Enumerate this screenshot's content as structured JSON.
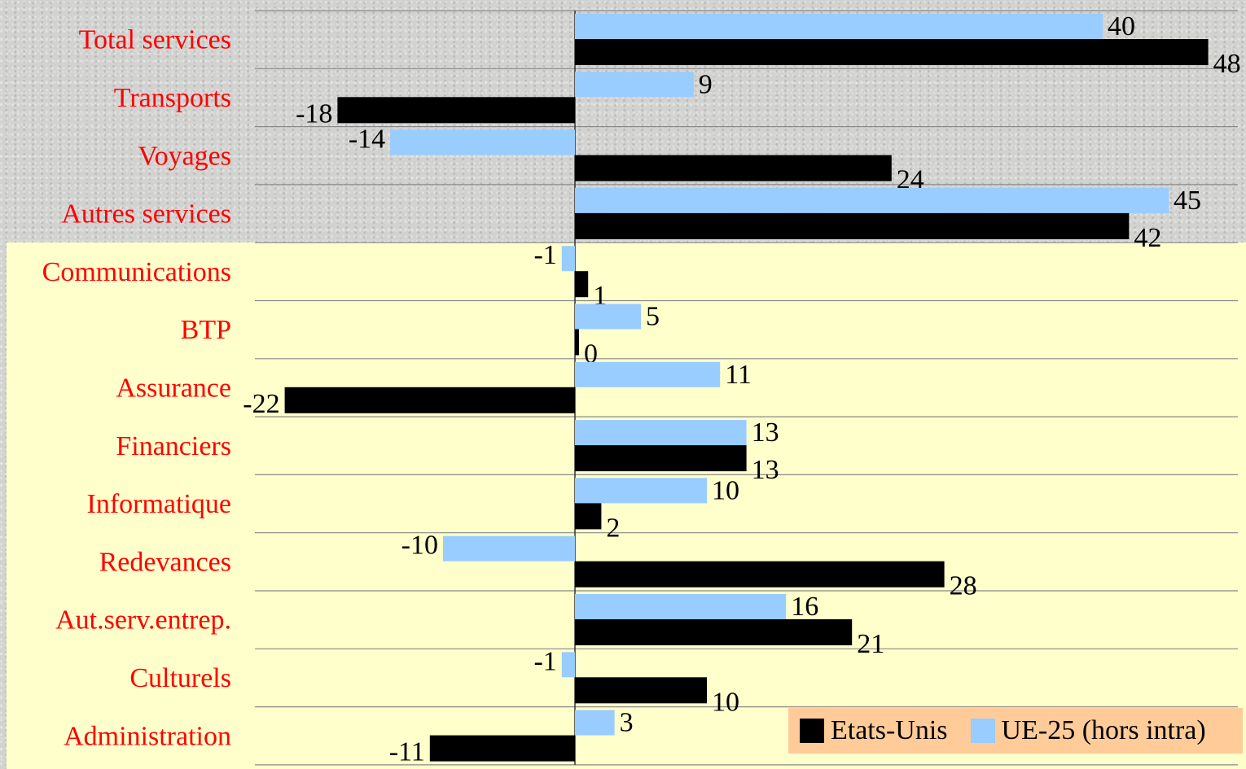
{
  "chart_data": {
    "type": "bar",
    "orientation": "horizontal",
    "categories": [
      "Total services",
      "Transports",
      "Voyages",
      "Autres services",
      "Communications",
      "BTP",
      "Assurance",
      "Financiers",
      "Informatique",
      "Redevances",
      "Aut.serv.entrep.",
      "Culturels",
      "Administration"
    ],
    "series": [
      {
        "name": "UE-25 (hors intra)",
        "color": "#99ccff",
        "values": [
          40,
          9,
          -14,
          45,
          -1,
          5,
          11,
          13,
          10,
          -10,
          16,
          -1,
          3
        ]
      },
      {
        "name": "Etats-Unis",
        "color": "#000000",
        "values": [
          48,
          -18,
          24,
          42,
          1,
          0,
          -22,
          13,
          2,
          28,
          21,
          10,
          -11
        ]
      }
    ],
    "xlim": [
      -22,
      50
    ],
    "grid": true,
    "legend_position": "bottom-right",
    "colors": {
      "category_label": "#ff0000",
      "highlight_background": "#ffffcc",
      "legend_background": "#ffcc99"
    }
  }
}
